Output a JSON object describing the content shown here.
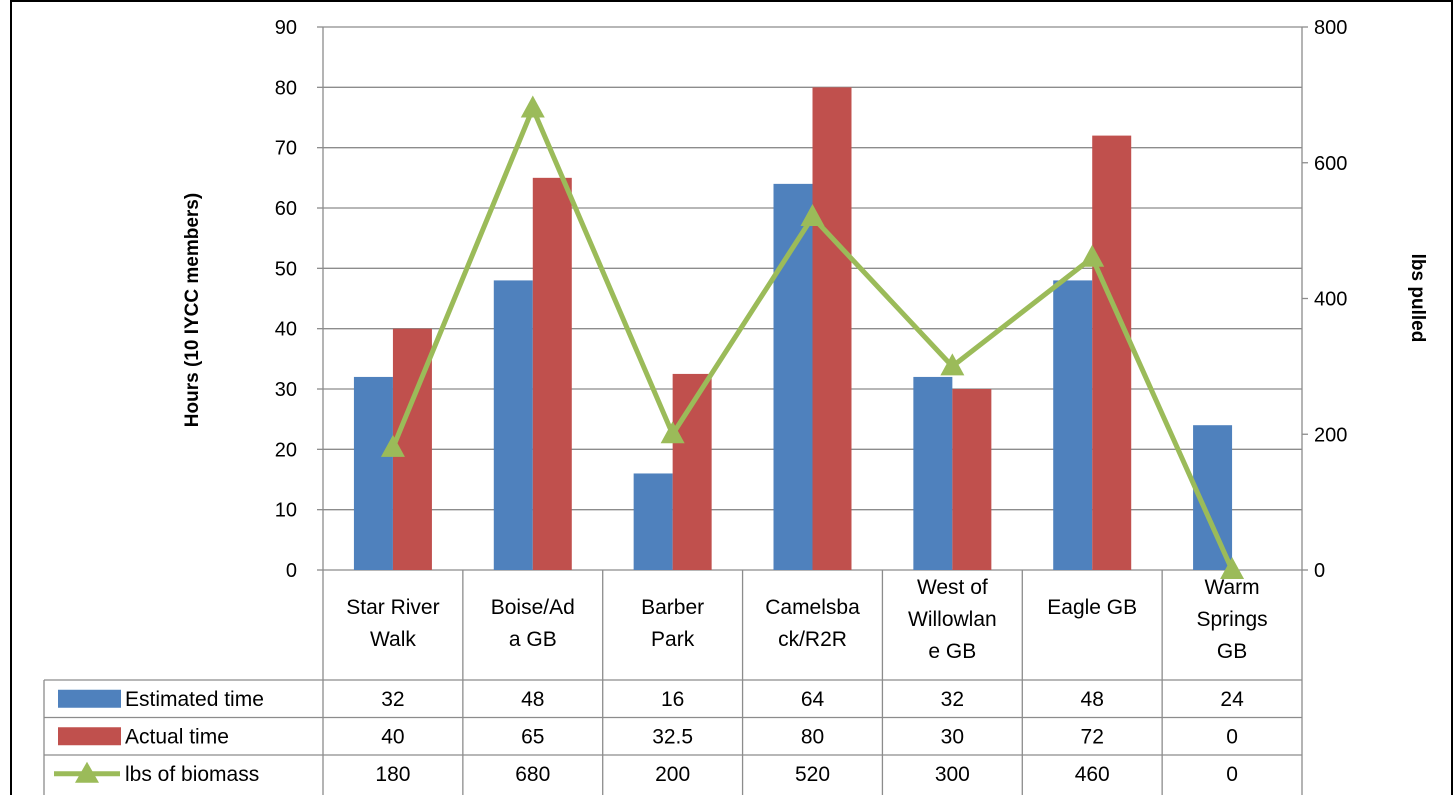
{
  "chart_data": {
    "type": "bar",
    "combo": "bar+line",
    "categories": [
      [
        "Star River",
        "Walk"
      ],
      [
        "Boise/Ad",
        "a GB"
      ],
      [
        "Barber",
        "Park"
      ],
      [
        "Camelsba",
        "ck/R2R"
      ],
      [
        "West of",
        "Willowlan",
        "e GB"
      ],
      [
        "Eagle GB"
      ],
      [
        "Warm",
        "Springs",
        "GB"
      ]
    ],
    "series": [
      {
        "name": "Estimated time",
        "axis": "left",
        "kind": "bar",
        "color": "#4F81BD",
        "values": [
          32,
          48,
          16,
          64,
          32,
          48,
          24
        ],
        "labels": [
          "32",
          "48",
          "16",
          "64",
          "32",
          "48",
          "24"
        ]
      },
      {
        "name": "Actual time",
        "axis": "left",
        "kind": "bar",
        "color": "#C0504D",
        "values": [
          40,
          65,
          32.5,
          80,
          30,
          72,
          0
        ],
        "labels": [
          "40",
          "65",
          "32.5",
          "80",
          "30",
          "72",
          "0"
        ]
      },
      {
        "name": "lbs of biomass",
        "axis": "right",
        "kind": "line",
        "marker": "triangle",
        "color": "#9BBB59",
        "values": [
          180,
          680,
          200,
          520,
          300,
          460,
          0
        ],
        "labels": [
          "180",
          "680",
          "200",
          "520",
          "300",
          "460",
          "0"
        ]
      }
    ],
    "ylabel": "Hours (10 IYCC members)",
    "y2label": "lbs pulled",
    "ylim": [
      0,
      90
    ],
    "y2lim": [
      0,
      800
    ],
    "yticks": [
      0,
      10,
      20,
      30,
      40,
      50,
      60,
      70,
      80,
      90
    ],
    "y2ticks": [
      0,
      200,
      400,
      600,
      800
    ],
    "grid": true,
    "legend": "data-table"
  }
}
